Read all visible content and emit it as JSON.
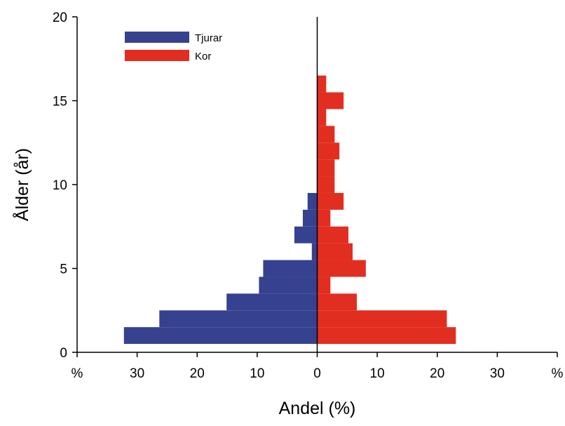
{
  "chart_data": {
    "type": "bar",
    "orientation": "horizontal-pyramid",
    "title": "",
    "xlabel": "Andel (%)",
    "ylabel": "Ålder (år)",
    "xlim": [
      -40,
      40
    ],
    "ylim": [
      0,
      20
    ],
    "x_ticks": [
      {
        "value": -40,
        "label": "%"
      },
      {
        "value": -30,
        "label": "30"
      },
      {
        "value": -20,
        "label": "20"
      },
      {
        "value": -10,
        "label": "10"
      },
      {
        "value": 0,
        "label": "0"
      },
      {
        "value": 10,
        "label": "10"
      },
      {
        "value": 20,
        "label": "20"
      },
      {
        "value": 30,
        "label": "30"
      },
      {
        "value": 40,
        "label": "%"
      }
    ],
    "y_ticks": [
      {
        "value": 0,
        "label": "0"
      },
      {
        "value": 5,
        "label": "5"
      },
      {
        "value": 10,
        "label": "10"
      },
      {
        "value": 15,
        "label": "15"
      },
      {
        "value": 20,
        "label": "20"
      }
    ],
    "ages": [
      1,
      2,
      3,
      4,
      5,
      6,
      7,
      8,
      9,
      10,
      11,
      12,
      13,
      14,
      15,
      16
    ],
    "series": [
      {
        "name": "Tjurar",
        "color": "#36428f",
        "side": "left",
        "values": [
          32.2,
          26.3,
          15.1,
          9.7,
          9.0,
          0.9,
          3.8,
          2.4,
          1.6,
          0,
          0,
          0,
          0,
          0,
          0,
          0
        ]
      },
      {
        "name": "Kor",
        "color": "#e12e21",
        "side": "right",
        "values": [
          23.1,
          21.6,
          6.6,
          2.2,
          8.1,
          5.9,
          5.2,
          2.2,
          4.4,
          2.9,
          2.9,
          3.7,
          2.9,
          1.5,
          4.4,
          1.5
        ]
      }
    ],
    "grid": false,
    "legend_position": "top-left"
  }
}
